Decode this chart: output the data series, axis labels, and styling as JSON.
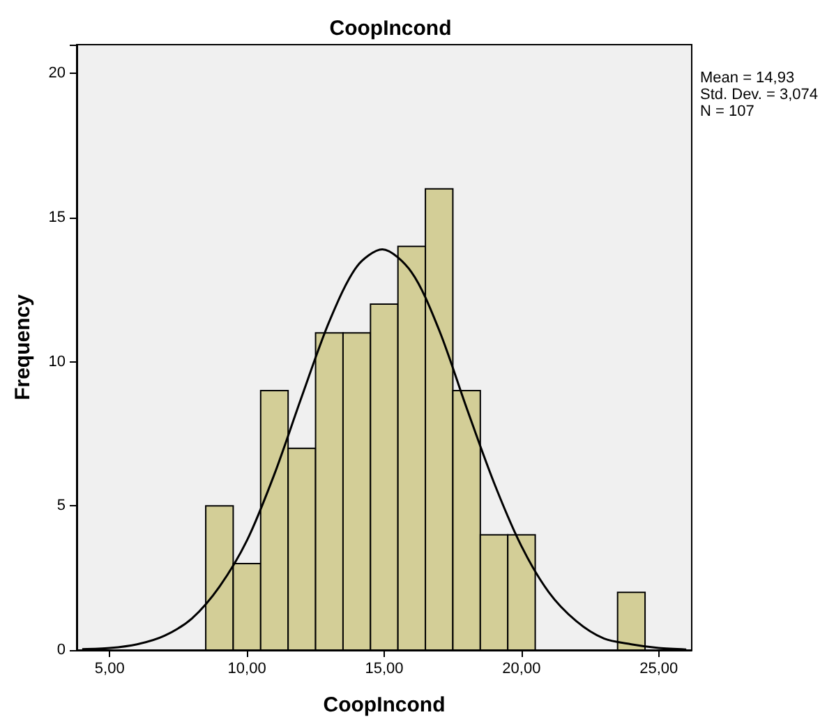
{
  "chart_data": {
    "type": "histogram",
    "title": "CoopIncond",
    "xlabel": "CoopIncond",
    "ylabel": "Frequency",
    "annotations": [
      "Mean = 14,93",
      "Std. Dev. = 3,074",
      "N = 107"
    ],
    "bins": [
      8.5,
      9.5,
      10.5,
      11.5,
      12.5,
      13.5,
      14.5,
      15.5,
      16.5,
      17.5,
      18.5,
      19.5,
      20.5,
      21.5,
      22.5,
      23.5,
      24.5
    ],
    "series": [
      {
        "color": "#d3ce97",
        "values": [
          5,
          3,
          9,
          7,
          11,
          11,
          12,
          14,
          16,
          9,
          4,
          4,
          0,
          0,
          0,
          2
        ]
      },
      {
        "type": "line",
        "color": "#000000",
        "x": [
          4,
          5,
          6,
          7,
          8,
          9,
          10,
          11,
          12,
          13,
          14,
          14.93,
          16,
          17,
          18,
          19,
          20,
          21,
          22,
          23,
          24,
          25,
          26
        ],
        "values": [
          0.03,
          0.07,
          0.2,
          0.5,
          1.1,
          2.2,
          3.8,
          6.1,
          8.8,
          11.4,
          13.3,
          13.9,
          13.1,
          11.1,
          8.4,
          5.8,
          3.6,
          2.0,
          1.0,
          0.4,
          0.2,
          0.07,
          0.02
        ]
      }
    ],
    "marker": "none",
    "line_style": "solid",
    "grid": false,
    "xlim": [
      3.8,
      26.2
    ],
    "xticks": [
      {
        "value": 5,
        "label": "5,00"
      },
      {
        "value": 10,
        "label": "10,00"
      },
      {
        "value": 15,
        "label": "15,00"
      },
      {
        "value": 20,
        "label": "20,00"
      },
      {
        "value": 25,
        "label": "25,00"
      }
    ],
    "ylim": [
      0,
      21
    ],
    "yticks": [
      0,
      5,
      10,
      15,
      20
    ]
  }
}
